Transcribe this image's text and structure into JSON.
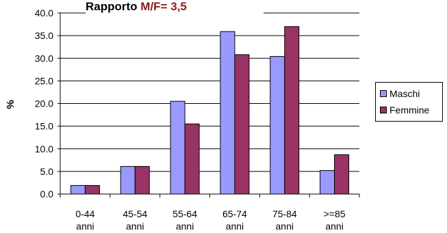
{
  "chart_data": {
    "type": "bar",
    "title": "Rapporto",
    "title_accent": "M/F= 3,5",
    "xlabel": "",
    "ylabel": "%",
    "ylim": [
      0,
      40
    ],
    "yticks": [
      "0.0",
      "5.0",
      "10.0",
      "15.0",
      "20.0",
      "25.0",
      "30.0",
      "35.0",
      "40.0"
    ],
    "categories": [
      [
        "0-44",
        "anni"
      ],
      [
        "45-54",
        "anni"
      ],
      [
        "55-64",
        "anni"
      ],
      [
        "65-74",
        "anni"
      ],
      [
        "75-84",
        "anni"
      ],
      [
        ">=85",
        "anni"
      ]
    ],
    "series": [
      {
        "name": "Maschi",
        "color": "#9999ff",
        "values": [
          1.9,
          6.1,
          20.5,
          35.9,
          30.4,
          5.2
        ]
      },
      {
        "name": "Femmine",
        "color": "#993366",
        "values": [
          1.9,
          6.1,
          15.5,
          30.8,
          37.0,
          8.7
        ]
      }
    ],
    "grid": true,
    "legend_position": "right"
  }
}
